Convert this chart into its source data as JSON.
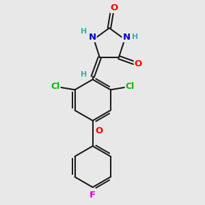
{
  "bg_color": "#e8e8e8",
  "bond_color": "#1a1a1a",
  "bond_width": 1.5,
  "atom_colors": {
    "O": "#ff0000",
    "N": "#0000cc",
    "Cl": "#00bb00",
    "F": "#cc00cc",
    "H": "#3aafa9",
    "C": "#1a1a1a"
  },
  "font_size": 9.5
}
